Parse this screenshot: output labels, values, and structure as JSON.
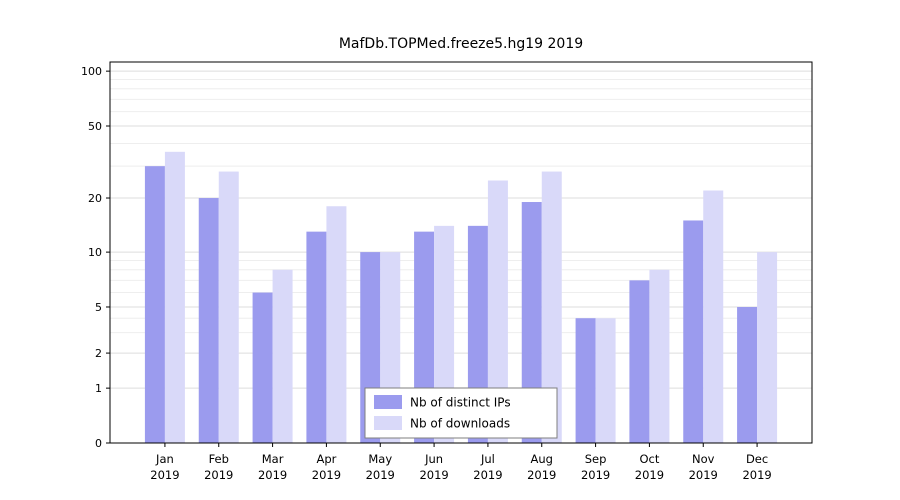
{
  "page": {
    "background": "#ffffff"
  },
  "chart_data": {
    "type": "bar",
    "title": "MafDb.TOPMed.freeze5.hg19 2019",
    "categories": [
      "Jan",
      "Feb",
      "Mar",
      "Apr",
      "May",
      "Jun",
      "Jul",
      "Aug",
      "Sep",
      "Oct",
      "Nov",
      "Dec"
    ],
    "year_label": "2019",
    "series": [
      {
        "name": "Nb of distinct IPs",
        "color": "#9b9bee",
        "values": [
          30,
          20,
          6,
          13,
          10,
          13,
          14,
          19,
          4,
          7,
          15,
          5
        ]
      },
      {
        "name": "Nb of downloads",
        "color": "#d9d9f9",
        "values": [
          36,
          28,
          8,
          18,
          10,
          14,
          25,
          28,
          4,
          8,
          22,
          10
        ]
      }
    ],
    "yticks": [
      0,
      1,
      2,
      5,
      10,
      20,
      50,
      100
    ],
    "ylim": [
      0,
      100
    ],
    "scale": "log-like",
    "grid": true,
    "xlabel": "",
    "ylabel": "",
    "legend_position": "bottom-center-inside"
  }
}
